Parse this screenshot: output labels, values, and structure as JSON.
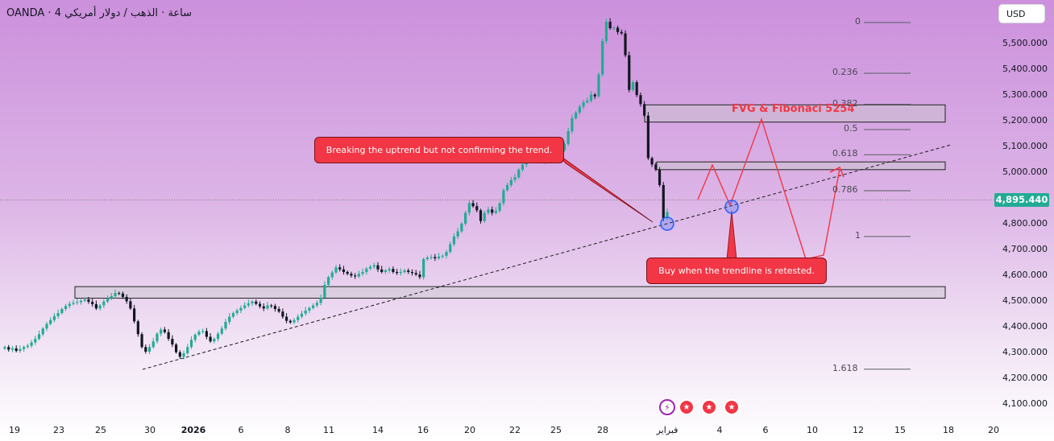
{
  "header": {
    "symbol_title": "OANDA · ‎4 ‏ساعة · الذهب / دولار أمريكي",
    "currency_label": "USD"
  },
  "last_price_label": "4,895.440",
  "icons": [
    "lightning-icon",
    "us-flag-icon",
    "us-flag-icon",
    "us-flag-icon"
  ],
  "colors": {
    "up": "#22ab94",
    "down": "#131722",
    "annotation": "#f23645",
    "accent": "#2962ff"
  },
  "chart_data": {
    "type": "candlestick",
    "x_ticks": [
      "19",
      "23",
      "25",
      "30",
      "2026",
      "6",
      "8",
      "11",
      "14",
      "16",
      "20",
      "22",
      "25",
      "28",
      "فبراير",
      "4",
      "6",
      "10",
      "12",
      "15",
      "18",
      "20"
    ],
    "y_ticks": [
      "5,500.000",
      "5,400.000",
      "5,300.000",
      "5,200.000",
      "5,100.000",
      "5,000.000",
      "4,800.000",
      "4,700.000",
      "4,600.000",
      "4,500.000",
      "4,400.000",
      "4,300.000",
      "4,200.000",
      "4,100.000"
    ],
    "ylim": [
      4060,
      5600
    ],
    "last_price": 4895.44,
    "candles_close": [
      4320,
      4310,
      4315,
      4305,
      4312,
      4320,
      4325,
      4338,
      4352,
      4370,
      4392,
      4410,
      4425,
      4440,
      4452,
      4468,
      4480,
      4488,
      4492,
      4495,
      4500,
      4505,
      4496,
      4487,
      4470,
      4482,
      4497,
      4510,
      4518,
      4530,
      4528,
      4515,
      4498,
      4470,
      4420,
      4370,
      4320,
      4302,
      4320,
      4342,
      4372,
      4388,
      4378,
      4352,
      4330,
      4300,
      4282,
      4296,
      4320,
      4348,
      4368,
      4380,
      4382,
      4360,
      4342,
      4352,
      4372,
      4392,
      4418,
      4438,
      4452,
      4462,
      4472,
      4482,
      4490,
      4497,
      4488,
      4478,
      4470,
      4482,
      4480,
      4468,
      4458,
      4438,
      4422,
      4416,
      4425,
      4438,
      4450,
      4462,
      4472,
      4482,
      4492,
      4512,
      4562,
      4592,
      4610,
      4630,
      4622,
      4612,
      4605,
      4598,
      4595,
      4605,
      4612,
      4625,
      4632,
      4638,
      4622,
      4612,
      4618,
      4624,
      4612,
      4608,
      4612,
      4618,
      4612,
      4608,
      4602,
      4592,
      4662,
      4668,
      4670,
      4665,
      4672,
      4675,
      4690,
      4720,
      4750,
      4770,
      4800,
      4842,
      4880,
      4868,
      4852,
      4810,
      4842,
      4855,
      4842,
      4850,
      4880,
      4930,
      4950,
      4970,
      4980,
      5010,
      5030,
      5055,
      5080,
      5080,
      5060,
      5040,
      5055,
      5080,
      5090,
      5100,
      5085,
      5110,
      5160,
      5210,
      5232,
      5255,
      5272,
      5278,
      5302,
      5295,
      5380,
      5510,
      5585,
      5560,
      5562,
      5545,
      5540,
      5455,
      5320,
      5350,
      5300,
      5265,
      5220,
      5055,
      5030,
      5010,
      4950,
      4820,
      4845
    ],
    "fib_levels": [
      {
        "label": "0",
        "value": 5582
      },
      {
        "label": "0.236",
        "value": 5385
      },
      {
        "label": "0.382",
        "value": 5264
      },
      {
        "label": "0.5",
        "value": 5166
      },
      {
        "label": "0.618",
        "value": 5068
      },
      {
        "label": "0.786",
        "value": 4928
      },
      {
        "label": "1",
        "value": 4750
      },
      {
        "label": "1.618",
        "value": 4234
      }
    ],
    "zones": [
      {
        "label": "FVG & Fibonaci 5254",
        "y_top": 5262,
        "y_bottom": 5195
      },
      {
        "label": "",
        "y_top": 5040,
        "y_bottom": 5010
      },
      {
        "label": "",
        "y_top": 4555,
        "y_bottom": 4510
      }
    ],
    "annotations": [
      {
        "text": "Breaking the uptrend but not confirming the trend."
      },
      {
        "text": "Buy when the trendline is retested."
      }
    ],
    "trendline": "dashed rising trendline from late December lows",
    "projection": "zigzag path: retest of trendline, rally to FVG zone, drop back, then rally"
  }
}
